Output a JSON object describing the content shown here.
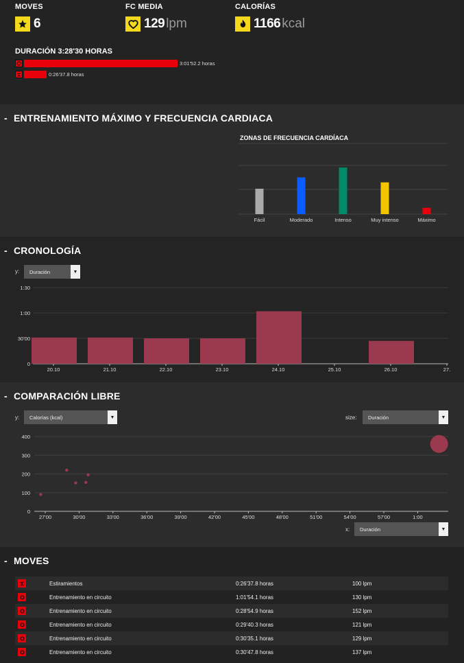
{
  "stats": {
    "moves": {
      "label": "MOVES",
      "value": "6"
    },
    "hr": {
      "label": "FC MEDIA",
      "value": "129",
      "unit": "lpm"
    },
    "cal": {
      "label": "CALORÍAS",
      "value": "1166",
      "unit": "kcal"
    }
  },
  "duration": {
    "title": "DURACIÓN 3:28'30 HORAS",
    "rows": [
      {
        "icon": "circuit-icon",
        "fraction": 1.0,
        "text": "3:01'52.2 horas"
      },
      {
        "icon": "stretch-icon",
        "fraction": 0.147,
        "text": "0:26'37.8 horas"
      }
    ]
  },
  "zones_section": {
    "title": "ENTRENAMIENTO MÁXIMO Y FRECUENCIA CARDIACA",
    "chart_title": "ZONAS DE FRECUENCIA CARDÍACA"
  },
  "crono_section": {
    "title": "CRONOLOGÍA",
    "y_label": "y:",
    "y_select": "Duración"
  },
  "comp_section": {
    "title": "COMPARACIÓN LIBRE",
    "y_label": "y:",
    "y_select": "Calorías (kcal)",
    "size_label": "size:",
    "size_select": "Duración",
    "x_label": "x:",
    "x_select": "Duración"
  },
  "moves_section": {
    "title": "MOVES",
    "rows": [
      {
        "name": "Estiramientos",
        "duration": "0:26'37.8 horas",
        "hr": "100 lpm",
        "icon": "stretch-icon"
      },
      {
        "name": "Entrenamiento en circuito",
        "duration": "1:01'54.1 horas",
        "hr": "130 lpm",
        "icon": "circuit-icon"
      },
      {
        "name": "Entrenamiento en circuito",
        "duration": "0:28'54.9 horas",
        "hr": "152 lpm",
        "icon": "circuit-icon"
      },
      {
        "name": "Entrenamiento en circuito",
        "duration": "0:29'40.3 horas",
        "hr": "121 lpm",
        "icon": "circuit-icon"
      },
      {
        "name": "Entrenamiento en circuito",
        "duration": "0:30'35.1 horas",
        "hr": "129 lpm",
        "icon": "circuit-icon"
      },
      {
        "name": "Entrenamiento en circuito",
        "duration": "0:30'47.8 horas",
        "hr": "137 lpm",
        "icon": "circuit-icon"
      }
    ]
  },
  "chart_data": [
    {
      "type": "bar",
      "title": "ZONAS DE FRECUENCIA CARDÍACA",
      "categories": [
        "Fácil",
        "Moderado",
        "Intenso",
        "Muy intenso",
        "Máximo"
      ],
      "values": [
        36,
        52,
        66,
        45,
        9
      ],
      "colors": [
        "#aaaaaa",
        "#0a5dff",
        "#008a67",
        "#f5c400",
        "#e8000b"
      ],
      "ylim": [
        0,
        70
      ]
    },
    {
      "type": "bar",
      "title": "CRONOLOGÍA",
      "ylabel": "Duración",
      "categories": [
        "20.10",
        "21.10",
        "22.10",
        "23.10",
        "24.10",
        "25.10",
        "26.10",
        "27."
      ],
      "values": [
        31,
        31,
        30,
        30,
        62,
        0,
        27,
        0
      ],
      "yticks": [
        {
          "v": 0,
          "label": "0"
        },
        {
          "v": 30,
          "label": "30'00"
        },
        {
          "v": 60,
          "label": "1:00"
        },
        {
          "v": 90,
          "label": "1:30"
        }
      ],
      "ylim": [
        0,
        90
      ],
      "color": "#9b3a4e"
    },
    {
      "type": "scatter",
      "title": "COMPARACIÓN LIBRE",
      "xlabel": "Duración",
      "ylabel": "Calorías (kcal)",
      "xlim": [
        26.5,
        62.5
      ],
      "ylim": [
        0,
        400
      ],
      "xticks": [
        {
          "v": 27,
          "label": "27'00"
        },
        {
          "v": 30,
          "label": "30'00"
        },
        {
          "v": 33,
          "label": "33'00"
        },
        {
          "v": 36,
          "label": "36'00"
        },
        {
          "v": 39,
          "label": "39'00"
        },
        {
          "v": 42,
          "label": "42'00"
        },
        {
          "v": 45,
          "label": "45'00"
        },
        {
          "v": 48,
          "label": "48'00"
        },
        {
          "v": 51,
          "label": "51'00"
        },
        {
          "v": 54,
          "label": "54'00"
        },
        {
          "v": 57,
          "label": "57'00"
        },
        {
          "v": 60,
          "label": "1:00"
        }
      ],
      "yticks": [
        0,
        100,
        200,
        300,
        400
      ],
      "points": [
        {
          "x": 26.6,
          "y": 90,
          "size": 26.6
        },
        {
          "x": 28.9,
          "y": 220,
          "size": 28.9
        },
        {
          "x": 29.7,
          "y": 152,
          "size": 29.7
        },
        {
          "x": 30.6,
          "y": 155,
          "size": 30.6
        },
        {
          "x": 30.8,
          "y": 195,
          "size": 30.8
        },
        {
          "x": 61.9,
          "y": 360,
          "size": 61.9
        }
      ],
      "color": "#9b3a4e"
    }
  ]
}
